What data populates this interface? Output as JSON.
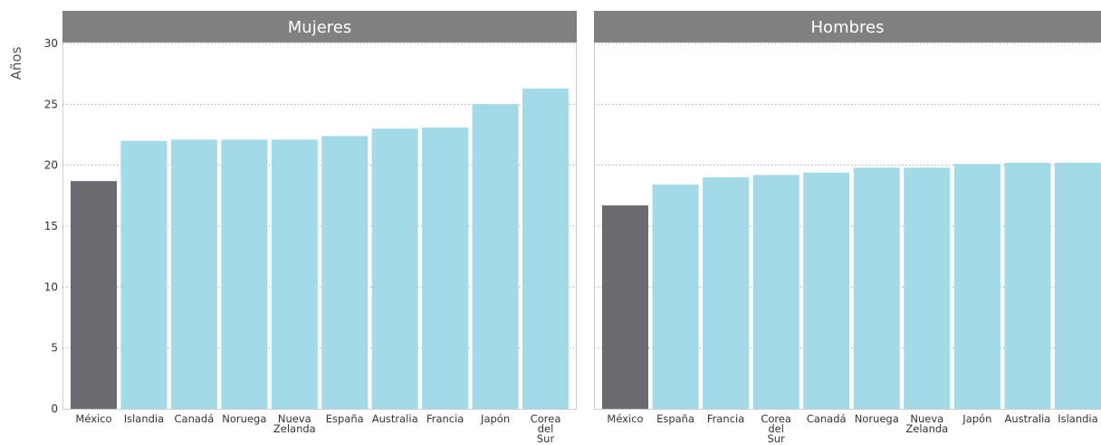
{
  "chart_data": {
    "type": "bar",
    "ylabel": "Años",
    "ylim": [
      0,
      30
    ],
    "yticks": [
      0,
      5,
      10,
      15,
      20,
      25,
      30
    ],
    "grid": true,
    "colors": {
      "highlight": "#6b6a70",
      "default": "#a2dae8",
      "header": "#808080",
      "grid": "#aaaaaa",
      "axis": "#cccccc"
    },
    "highlight_category": "México",
    "panels": [
      {
        "title": "Mujeres",
        "categories": [
          "México",
          "Islandia",
          "Canadá",
          "Noruega",
          "Nueva Zelanda",
          "España",
          "Australia",
          "Francia",
          "Japón",
          "Corea del Sur"
        ],
        "values": [
          18.7,
          22.0,
          22.1,
          22.1,
          22.1,
          22.4,
          23.0,
          23.1,
          25.0,
          26.3
        ]
      },
      {
        "title": "Hombres",
        "categories": [
          "México",
          "España",
          "Francia",
          "Corea del Sur",
          "Canadá",
          "Noruega",
          "Nueva Zelanda",
          "Japón",
          "Australia",
          "Islandia"
        ],
        "values": [
          16.7,
          18.4,
          19.0,
          19.2,
          19.4,
          19.8,
          19.8,
          20.1,
          20.2,
          20.2
        ]
      }
    ]
  }
}
